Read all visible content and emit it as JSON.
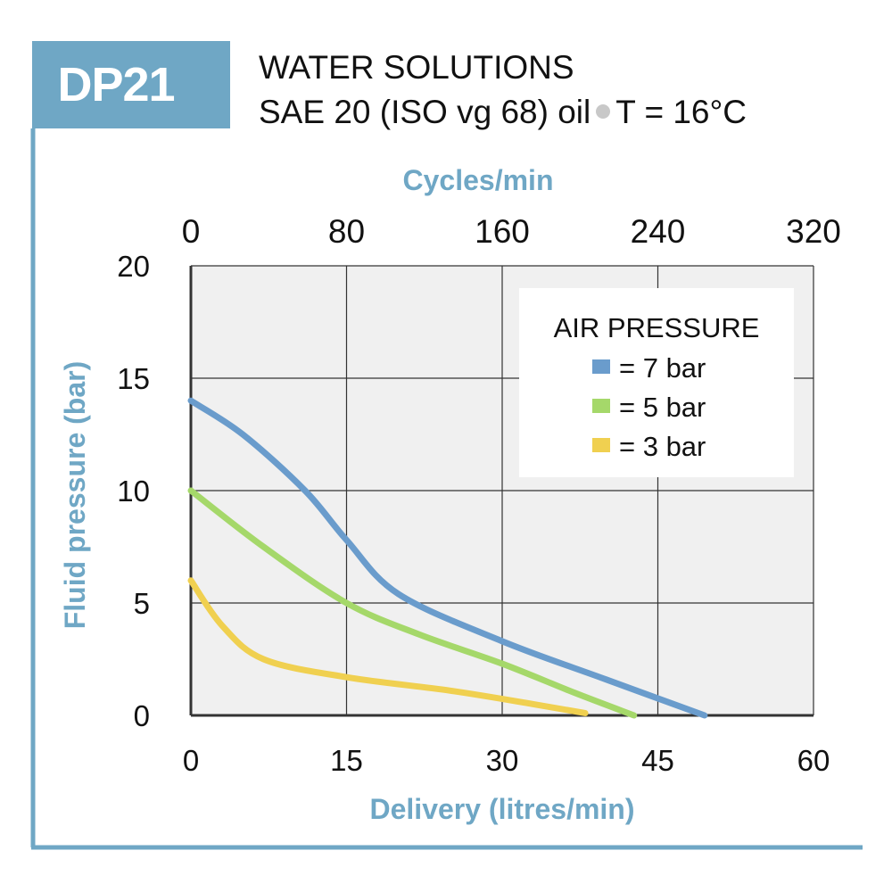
{
  "badge": "DP21",
  "title_line1": "WATER SOLUTIONS",
  "title_line2_part1": "SAE 20 (ISO vg 68) oil",
  "title_line2_part2": "T = 16°C",
  "colors": {
    "accent": "#6fa7c5",
    "plot_bg": "#f0f0f0",
    "grid": "#333333"
  },
  "chart_data": {
    "type": "line",
    "xlabel": "Delivery (litres/min)",
    "ylabel": "Fluid pressure (bar)",
    "x2label": "Cycles/min",
    "xlim": [
      0,
      60
    ],
    "ylim": [
      0,
      20
    ],
    "x2lim": [
      0,
      320
    ],
    "x_ticks": [
      0,
      15,
      30,
      45,
      60
    ],
    "y_ticks": [
      0,
      5,
      10,
      15,
      20
    ],
    "x2_ticks": [
      0,
      80,
      160,
      240,
      320
    ],
    "grid": true,
    "legend": {
      "title": "AIR PRESSURE",
      "placement": "top-right"
    },
    "series": [
      {
        "name": "= 7 bar",
        "color": "#6a9ccc",
        "points": [
          [
            0,
            14
          ],
          [
            5,
            12.5
          ],
          [
            11,
            10
          ],
          [
            15,
            7.8
          ],
          [
            20,
            5.4
          ],
          [
            30,
            3.3
          ],
          [
            40,
            1.6
          ],
          [
            49.5,
            0
          ]
        ]
      },
      {
        "name": "= 5 bar",
        "color": "#a5d86a",
        "points": [
          [
            0,
            10
          ],
          [
            7,
            7.5
          ],
          [
            15,
            5
          ],
          [
            22,
            3.6
          ],
          [
            30,
            2.3
          ],
          [
            37,
            1
          ],
          [
            42.7,
            0
          ]
        ]
      },
      {
        "name": "= 3 bar",
        "color": "#f0d050",
        "points": [
          [
            0,
            6
          ],
          [
            3,
            4
          ],
          [
            7,
            2.5
          ],
          [
            15,
            1.7
          ],
          [
            25,
            1.1
          ],
          [
            33,
            0.5
          ],
          [
            38,
            0.1
          ]
        ]
      }
    ]
  }
}
